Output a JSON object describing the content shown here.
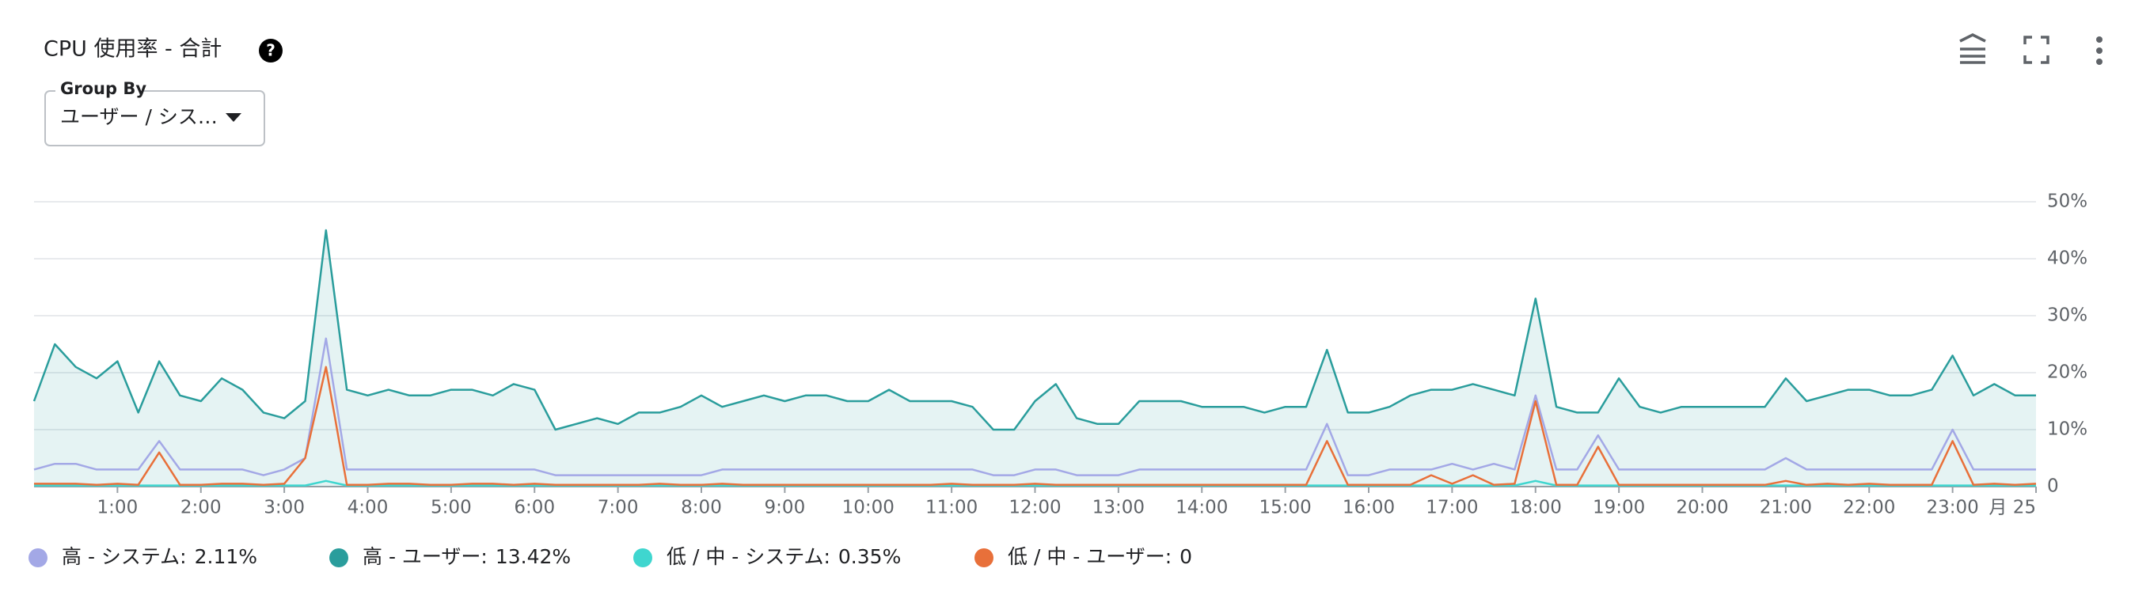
{
  "chart_data": {
    "type": "line",
    "title": "CPU 使用率 - 合計",
    "group_by": {
      "label": "Group By",
      "value": "ユーザー / シス…"
    },
    "x": [
      0,
      0.25,
      0.5,
      0.75,
      1,
      1.25,
      1.5,
      1.75,
      2,
      2.25,
      2.5,
      2.75,
      3,
      3.25,
      3.5,
      3.75,
      4,
      4.25,
      4.5,
      4.75,
      5,
      5.25,
      5.5,
      5.75,
      6,
      6.25,
      6.5,
      6.75,
      7,
      7.25,
      7.5,
      7.75,
      8,
      8.25,
      8.5,
      8.75,
      9,
      9.25,
      9.5,
      9.75,
      10,
      10.25,
      10.5,
      10.75,
      11,
      11.25,
      11.5,
      11.75,
      12,
      12.25,
      12.5,
      12.75,
      13,
      13.25,
      13.5,
      13.75,
      14,
      14.25,
      14.5,
      14.75,
      15,
      15.25,
      15.5,
      15.75,
      16,
      16.25,
      16.5,
      16.75,
      17,
      17.25,
      17.5,
      17.75,
      18,
      18.25,
      18.5,
      18.75,
      19,
      19.25,
      19.5,
      19.75,
      20,
      20.25,
      20.5,
      20.75,
      21,
      21.25,
      21.5,
      21.75,
      22,
      22.25,
      22.5,
      22.75,
      23,
      23.25,
      23.5,
      23.75,
      24
    ],
    "xlim": [
      0,
      24
    ],
    "xticks": [
      {
        "value": 1,
        "label": "1:00"
      },
      {
        "value": 2,
        "label": "2:00"
      },
      {
        "value": 3,
        "label": "3:00"
      },
      {
        "value": 4,
        "label": "4:00"
      },
      {
        "value": 5,
        "label": "5:00"
      },
      {
        "value": 6,
        "label": "6:00"
      },
      {
        "value": 7,
        "label": "7:00"
      },
      {
        "value": 8,
        "label": "8:00"
      },
      {
        "value": 9,
        "label": "9:00"
      },
      {
        "value": 10,
        "label": "10:00"
      },
      {
        "value": 11,
        "label": "11:00"
      },
      {
        "value": 12,
        "label": "12:00"
      },
      {
        "value": 13,
        "label": "13:00"
      },
      {
        "value": 14,
        "label": "14:00"
      },
      {
        "value": 15,
        "label": "15:00"
      },
      {
        "value": 16,
        "label": "16:00"
      },
      {
        "value": 17,
        "label": "17:00"
      },
      {
        "value": 18,
        "label": "18:00"
      },
      {
        "value": 19,
        "label": "19:00"
      },
      {
        "value": 20,
        "label": "20:00"
      },
      {
        "value": 21,
        "label": "21:00"
      },
      {
        "value": 22,
        "label": "22:00"
      },
      {
        "value": 23,
        "label": "23:00"
      },
      {
        "value": 24,
        "label": "月 25"
      }
    ],
    "ylim": [
      0,
      50
    ],
    "yticks": [
      0,
      {
        "value": 10,
        "label": "10%"
      },
      {
        "value": 20,
        "label": "20%"
      },
      {
        "value": 30,
        "label": "30%"
      },
      {
        "value": 40,
        "label": "40%"
      },
      {
        "value": 50,
        "label": "50%"
      }
    ],
    "grid": true,
    "series": [
      {
        "name": "高 - システム:",
        "legend_value": "2.11%",
        "color": "#a3a8e6",
        "values": [
          3,
          4,
          4,
          3,
          3,
          3,
          8,
          3,
          3,
          3,
          3,
          2,
          3,
          5,
          26,
          3,
          3,
          3,
          3,
          3,
          3,
          3,
          3,
          3,
          3,
          2,
          2,
          2,
          2,
          2,
          2,
          2,
          2,
          3,
          3,
          3,
          3,
          3,
          3,
          3,
          3,
          3,
          3,
          3,
          3,
          3,
          2,
          2,
          3,
          3,
          2,
          2,
          2,
          3,
          3,
          3,
          3,
          3,
          3,
          3,
          3,
          3,
          11,
          2,
          2,
          3,
          3,
          3,
          4,
          3,
          4,
          3,
          16,
          3,
          3,
          9,
          3,
          3,
          3,
          3,
          3,
          3,
          3,
          3,
          5,
          3,
          3,
          3,
          3,
          3,
          3,
          3,
          10,
          3,
          3,
          3,
          3
        ]
      },
      {
        "name": "高 - ユーザー:",
        "legend_value": "13.42%",
        "color": "#2a9d9c",
        "area": true,
        "values": [
          15,
          25,
          21,
          19,
          22,
          13,
          22,
          16,
          15,
          19,
          17,
          13,
          12,
          15,
          45,
          17,
          16,
          17,
          16,
          16,
          17,
          17,
          16,
          18,
          17,
          10,
          11,
          12,
          11,
          13,
          13,
          14,
          16,
          14,
          15,
          16,
          15,
          16,
          16,
          15,
          15,
          17,
          15,
          15,
          15,
          14,
          10,
          10,
          15,
          18,
          12,
          11,
          11,
          15,
          15,
          15,
          14,
          14,
          14,
          13,
          14,
          14,
          24,
          13,
          13,
          14,
          16,
          17,
          17,
          18,
          17,
          16,
          33,
          14,
          13,
          13,
          19,
          14,
          13,
          14,
          14,
          14,
          14,
          14,
          19,
          15,
          16,
          17,
          17,
          16,
          16,
          17,
          23,
          16,
          18,
          16,
          16
        ]
      },
      {
        "name": "低 / 中 - システム:",
        "legend_value": "0.35%",
        "color": "#3fd6cf",
        "values": [
          0.2,
          0.2,
          0.2,
          0.2,
          0.2,
          0.2,
          0.2,
          0.2,
          0.2,
          0.2,
          0.2,
          0.2,
          0.2,
          0.2,
          1,
          0.2,
          0.2,
          0.2,
          0.2,
          0.2,
          0.2,
          0.2,
          0.2,
          0.2,
          0.2,
          0.2,
          0.2,
          0.2,
          0.2,
          0.2,
          0.2,
          0.2,
          0.2,
          0.2,
          0.2,
          0.2,
          0.2,
          0.2,
          0.2,
          0.2,
          0.2,
          0.2,
          0.2,
          0.2,
          0.2,
          0.2,
          0.2,
          0.2,
          0.2,
          0.2,
          0.2,
          0.2,
          0.2,
          0.2,
          0.2,
          0.2,
          0.2,
          0.2,
          0.2,
          0.2,
          0.2,
          0.2,
          0.2,
          0.2,
          0.2,
          0.2,
          0.2,
          0.2,
          0.2,
          0.2,
          0.2,
          0.2,
          1,
          0.2,
          0.2,
          0.2,
          0.2,
          0.2,
          0.2,
          0.2,
          0.2,
          0.2,
          0.2,
          0.2,
          0.2,
          0.2,
          0.2,
          0.2,
          0.2,
          0.2,
          0.2,
          0.2,
          0.2,
          0.2,
          0.2,
          0.2,
          0.2
        ]
      },
      {
        "name": "低 / 中 - ユーザー:",
        "legend_value": "0",
        "color": "#e8703a",
        "values": [
          0.5,
          0.5,
          0.5,
          0.3,
          0.5,
          0.3,
          6,
          0.3,
          0.3,
          0.5,
          0.5,
          0.3,
          0.5,
          5,
          21,
          0.3,
          0.3,
          0.5,
          0.5,
          0.3,
          0.3,
          0.5,
          0.5,
          0.3,
          0.5,
          0.3,
          0.3,
          0.3,
          0.3,
          0.3,
          0.5,
          0.3,
          0.3,
          0.5,
          0.3,
          0.3,
          0.3,
          0.3,
          0.3,
          0.3,
          0.3,
          0.3,
          0.3,
          0.3,
          0.5,
          0.3,
          0.3,
          0.3,
          0.5,
          0.3,
          0.3,
          0.3,
          0.3,
          0.3,
          0.3,
          0.3,
          0.3,
          0.3,
          0.3,
          0.3,
          0.3,
          0.3,
          8,
          0.3,
          0.3,
          0.3,
          0.3,
          2,
          0.5,
          2,
          0.3,
          0.5,
          15,
          0.3,
          0.3,
          7,
          0.3,
          0.3,
          0.3,
          0.3,
          0.3,
          0.3,
          0.3,
          0.3,
          1,
          0.3,
          0.5,
          0.3,
          0.5,
          0.3,
          0.3,
          0.3,
          8,
          0.3,
          0.5,
          0.3,
          0.5
        ]
      }
    ]
  }
}
